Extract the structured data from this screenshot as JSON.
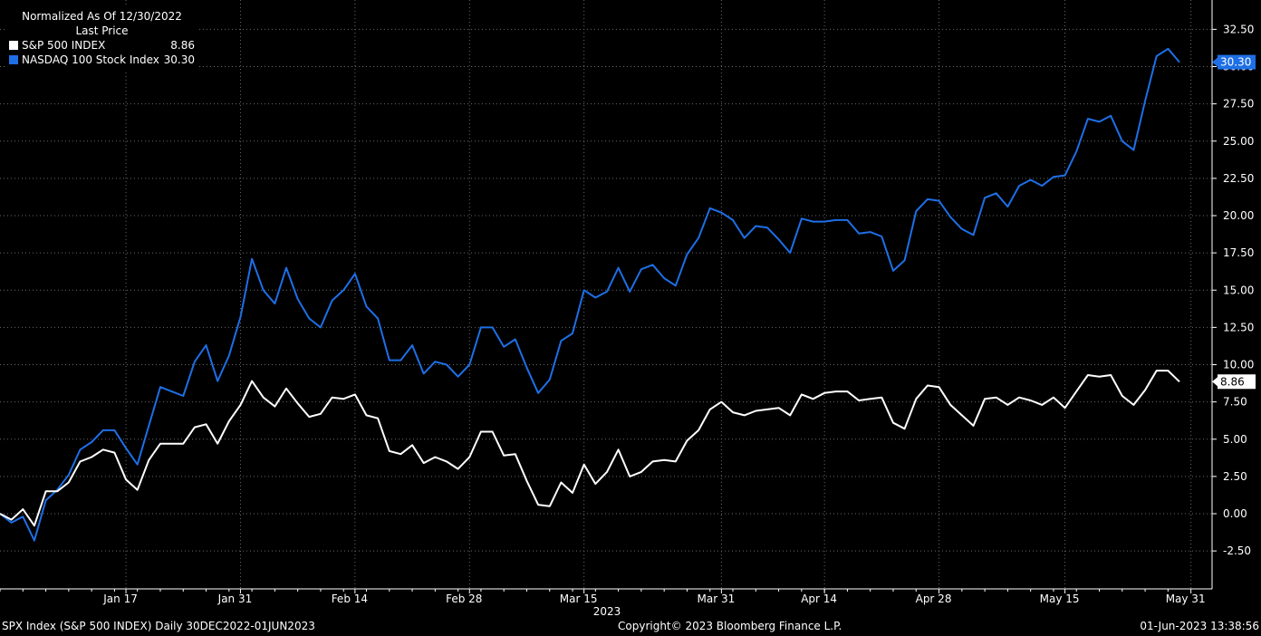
{
  "legend": {
    "title": "Normalized As Of 12/30/2022",
    "subtitle": "Last Price",
    "items": [
      {
        "name": "S&P 500 INDEX",
        "value": "8.86",
        "color": "#ffffff"
      },
      {
        "name": "NASDAQ 100 Stock Index",
        "value": "30.30",
        "color": "#1e6fe6"
      }
    ]
  },
  "footer": {
    "left": "SPX Index (S&P 500 INDEX)  Daily 30DEC2022-01JUN2023",
    "center": "Copyright© 2023 Bloomberg Finance L.P.",
    "right": "01-Jun-2023 13:38:56"
  },
  "chart_data": {
    "type": "line",
    "title": "Normalized As Of 12/30/2022",
    "ylim": [
      -5,
      34
    ],
    "yticks": [
      "-2.50",
      "0.00",
      "2.50",
      "5.00",
      "7.50",
      "10.00",
      "12.50",
      "15.00",
      "17.50",
      "20.00",
      "22.50",
      "25.00",
      "27.50",
      "30.00",
      "32.50"
    ],
    "ytick_values": [
      -2.5,
      0,
      2.5,
      5,
      7.5,
      10,
      12.5,
      15,
      17.5,
      20,
      22.5,
      25,
      27.5,
      30,
      32.5
    ],
    "xticks": [
      {
        "label": "Jan 17",
        "index": 11
      },
      {
        "label": "Jan 31",
        "index": 21
      },
      {
        "label": "Feb 14",
        "index": 31
      },
      {
        "label": "Feb 28",
        "index": 41
      },
      {
        "label": "Mar 15",
        "index": 51
      },
      {
        "label": "Mar 31",
        "index": 63
      },
      {
        "label": "Apr 14",
        "index": 72
      },
      {
        "label": "Apr 28",
        "index": 82
      },
      {
        "label": "May 15",
        "index": 93
      },
      {
        "label": "May 31",
        "index": 104
      }
    ],
    "xlabel": "2023",
    "grid": true,
    "legend_position": "top-left",
    "series": [
      {
        "name": "S&P 500 INDEX",
        "color": "#ffffff",
        "last_label": "8.86",
        "values": [
          0.0,
          -0.4,
          0.3,
          -0.8,
          1.5,
          1.5,
          2.1,
          3.5,
          3.8,
          4.3,
          4.1,
          2.3,
          1.6,
          3.6,
          4.7,
          4.7,
          4.7,
          5.8,
          6.0,
          4.7,
          6.2,
          7.3,
          8.9,
          7.8,
          7.2,
          8.4,
          7.4,
          6.5,
          6.7,
          7.8,
          7.7,
          8.0,
          6.6,
          6.4,
          4.2,
          4.0,
          4.6,
          3.4,
          3.8,
          3.5,
          3.0,
          3.8,
          5.5,
          5.5,
          3.9,
          4.0,
          2.2,
          0.6,
          0.5,
          2.1,
          1.4,
          3.3,
          2.0,
          2.8,
          4.3,
          2.5,
          2.8,
          3.5,
          3.6,
          3.5,
          4.9,
          5.6,
          7.0,
          7.5,
          6.8,
          6.6,
          6.9,
          7.0,
          7.1,
          6.6,
          8.0,
          7.7,
          8.1,
          8.2,
          8.2,
          7.6,
          7.7,
          7.8,
          6.1,
          5.7,
          7.7,
          8.6,
          8.5,
          7.3,
          6.6,
          5.9,
          7.7,
          7.8,
          7.3,
          7.8,
          7.6,
          7.3,
          7.8,
          7.1,
          8.2,
          9.3,
          9.2,
          9.3,
          7.9,
          7.3,
          8.3,
          9.6,
          9.6,
          8.86
        ]
      },
      {
        "name": "NASDAQ 100 Stock Index",
        "color": "#1e6fe6",
        "last_label": "30.30",
        "values": [
          0.0,
          -0.6,
          -0.2,
          -1.8,
          0.9,
          1.6,
          2.6,
          4.3,
          4.8,
          5.6,
          5.6,
          4.4,
          3.3,
          5.9,
          8.5,
          8.2,
          7.9,
          10.2,
          11.3,
          8.9,
          10.6,
          13.2,
          17.1,
          15.0,
          14.1,
          16.5,
          14.4,
          13.1,
          12.5,
          14.3,
          15.0,
          16.1,
          13.9,
          13.1,
          10.3,
          10.3,
          11.3,
          9.4,
          10.2,
          10.0,
          9.2,
          10.0,
          12.5,
          12.5,
          11.2,
          11.7,
          9.8,
          8.1,
          9.0,
          11.6,
          12.1,
          15.0,
          14.5,
          14.9,
          16.5,
          14.9,
          16.4,
          16.7,
          15.8,
          15.3,
          17.4,
          18.5,
          20.5,
          20.2,
          19.7,
          18.5,
          19.3,
          19.2,
          18.4,
          17.5,
          19.8,
          19.6,
          19.6,
          19.7,
          19.7,
          18.8,
          18.9,
          18.6,
          16.3,
          17.0,
          20.3,
          21.1,
          21.0,
          19.9,
          19.1,
          18.7,
          21.2,
          21.5,
          20.6,
          22.0,
          22.4,
          22.0,
          22.6,
          22.7,
          24.3,
          26.5,
          26.3,
          26.7,
          25.0,
          24.4,
          27.7,
          30.7,
          31.2,
          30.3
        ]
      }
    ]
  }
}
